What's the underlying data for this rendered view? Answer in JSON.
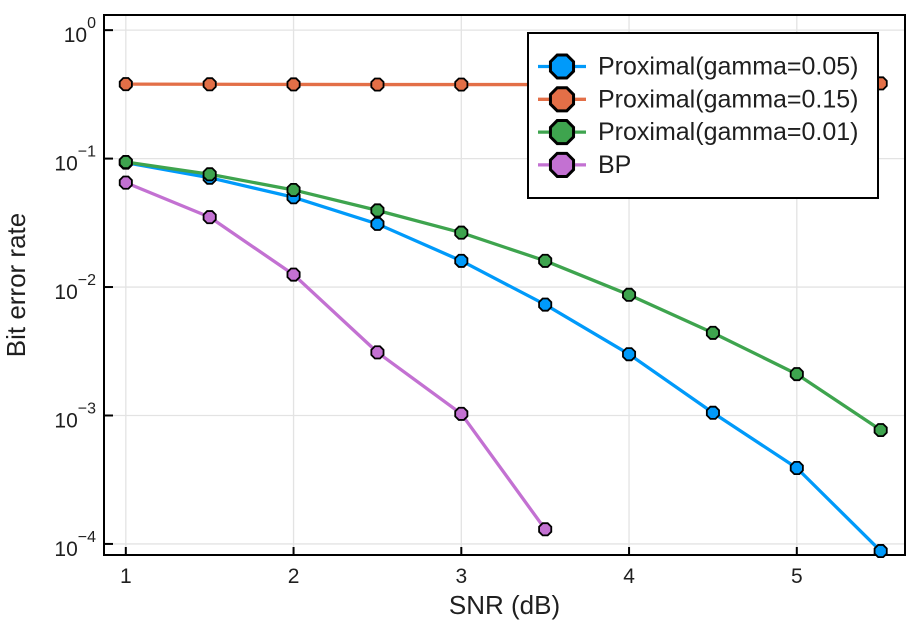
{
  "chart_data": {
    "type": "line",
    "title": "",
    "xlabel": "SNR (dB)",
    "ylabel": "Bit error rate",
    "x_scale": "linear",
    "y_scale": "log10",
    "xlim": [
      0.87,
      5.645
    ],
    "ylim": [
      8.2e-05,
      1.312
    ],
    "grid": true,
    "marker_shape": "octagon",
    "legend_position": "top-right",
    "xticks": [
      {
        "value": 1,
        "label": "1"
      },
      {
        "value": 2,
        "label": "2"
      },
      {
        "value": 3,
        "label": "3"
      },
      {
        "value": 4,
        "label": "4"
      },
      {
        "value": 5,
        "label": "5"
      }
    ],
    "yticks": [
      {
        "value": 1,
        "base": "10",
        "exp": "0"
      },
      {
        "value": 0.1,
        "base": "10",
        "exp": "−1"
      },
      {
        "value": 0.01,
        "base": "10",
        "exp": "−2"
      },
      {
        "value": 0.001,
        "base": "10",
        "exp": "−3"
      },
      {
        "value": 0.0001,
        "base": "10",
        "exp": "−4"
      }
    ],
    "x": [
      1,
      1.5,
      2,
      2.5,
      3,
      3.5,
      4,
      4.5,
      5,
      5.5
    ],
    "series": [
      {
        "name": "Proximal(gamma=0.05)",
        "color": "#009AFA",
        "values": [
          0.093,
          0.071,
          0.05,
          0.031,
          0.016,
          0.0073,
          0.003,
          0.00105,
          0.00039,
          8.8e-05
        ]
      },
      {
        "name": "Proximal(gamma=0.15)",
        "color": "#E36F47",
        "values": [
          0.38,
          0.379,
          0.378,
          0.377,
          0.377,
          0.377,
          0.378,
          0.379,
          0.381,
          0.385
        ]
      },
      {
        "name": "Proximal(gamma=0.01)",
        "color": "#3EA44E",
        "values": [
          0.094,
          0.0755,
          0.057,
          0.0395,
          0.0265,
          0.016,
          0.0087,
          0.0044,
          0.0021,
          0.00077
        ]
      },
      {
        "name": "BP",
        "color": "#C371D2",
        "values": [
          0.065,
          0.035,
          0.0125,
          0.0031,
          0.00103,
          0.00013,
          null,
          null,
          null,
          null
        ]
      }
    ],
    "colors": {
      "spine": "#000000",
      "grid": "#E3E3E3",
      "text": "#1f1f1f",
      "legend_bg": "#ffffff",
      "legend_border": "#000000",
      "background": "#ffffff"
    }
  }
}
